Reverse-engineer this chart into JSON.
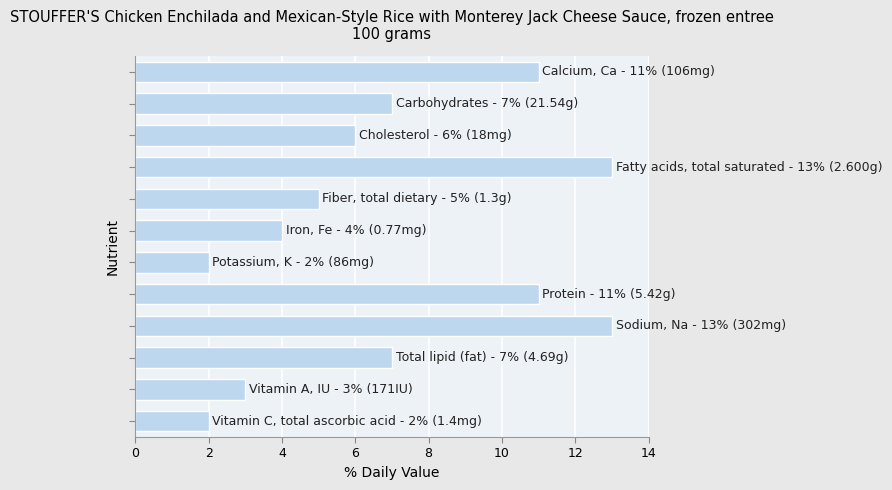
{
  "title": "STOUFFER'S Chicken Enchilada and Mexican-Style Rice with Monterey Jack Cheese Sauce, frozen entree\n100 grams",
  "xlabel": "% Daily Value",
  "ylabel": "Nutrient",
  "background_color": "#e8e8e8",
  "bar_color": "#bdd7ee",
  "plot_bg_color": "#edf2f7",
  "nutrients": [
    "Calcium, Ca - 11% (106mg)",
    "Carbohydrates - 7% (21.54g)",
    "Cholesterol - 6% (18mg)",
    "Fatty acids, total saturated - 13% (2.600g)",
    "Fiber, total dietary - 5% (1.3g)",
    "Iron, Fe - 4% (0.77mg)",
    "Potassium, K - 2% (86mg)",
    "Protein - 11% (5.42g)",
    "Sodium, Na - 13% (302mg)",
    "Total lipid (fat) - 7% (4.69g)",
    "Vitamin A, IU - 3% (171IU)",
    "Vitamin C, total ascorbic acid - 2% (1.4mg)"
  ],
  "values": [
    11,
    7,
    6,
    13,
    5,
    4,
    2,
    11,
    13,
    7,
    3,
    2
  ],
  "xlim": [
    0,
    14
  ],
  "xticks": [
    0,
    2,
    4,
    6,
    8,
    10,
    12,
    14
  ],
  "title_fontsize": 10.5,
  "label_fontsize": 9,
  "tick_fontsize": 9,
  "axis_label_fontsize": 10
}
